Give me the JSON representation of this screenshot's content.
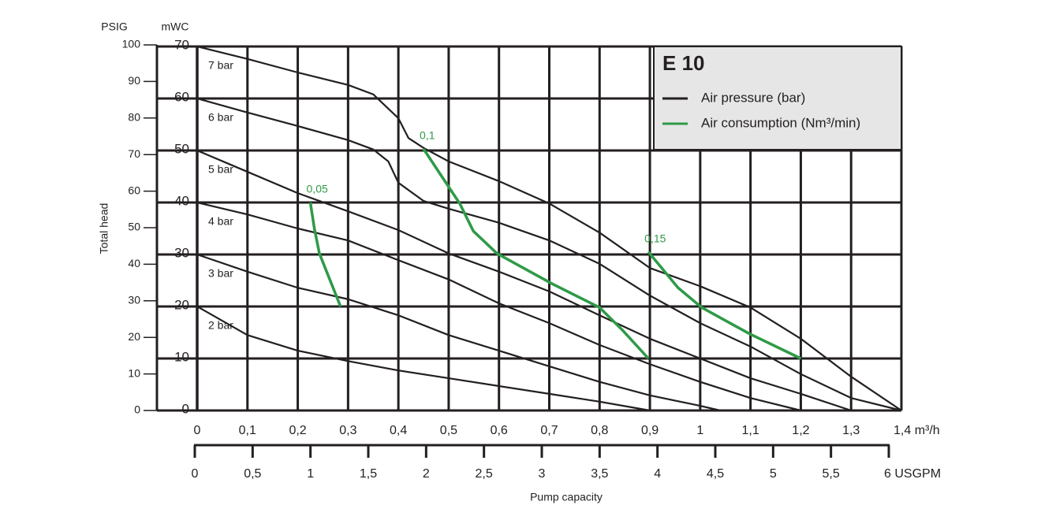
{
  "chart_data": {
    "type": "line",
    "title": "E 10",
    "xlabel": "Pump capacity",
    "ylabel": "Total head",
    "y_unit": "mWC",
    "y2_unit": "PSIG",
    "grid": true,
    "xlim": [
      0,
      1.4
    ],
    "xticks": [
      0,
      {
        "value": 0.1,
        "label": "0,1"
      },
      {
        "value": 0.2,
        "label": "0,2"
      },
      {
        "value": 0.3,
        "label": "0,3"
      },
      {
        "value": 0.4,
        "label": "0,4"
      },
      {
        "value": 0.5,
        "label": "0,5"
      },
      {
        "value": 0.6,
        "label": "0,6"
      },
      {
        "value": 0.7,
        "label": "0,7"
      },
      {
        "value": 0.8,
        "label": "0,8"
      },
      {
        "value": 0.9,
        "label": "0,9"
      },
      1,
      {
        "value": 1.1,
        "label": "1,1"
      },
      {
        "value": 1.2,
        "label": "1,2"
      },
      {
        "value": 1.3,
        "label": "1,3"
      },
      {
        "value": 1.4,
        "label": "1,4 m³/h"
      }
    ],
    "x2lim": [
      0,
      6
    ],
    "x2ticks": [
      0,
      {
        "value": 0.5,
        "label": "0,5"
      },
      1,
      {
        "value": 1.5,
        "label": "1,5"
      },
      2,
      {
        "value": 2.5,
        "label": "2,5"
      },
      3,
      {
        "value": 3.5,
        "label": "3,5"
      },
      4,
      {
        "value": 4.5,
        "label": "4,5"
      },
      5,
      {
        "value": 5.5,
        "label": "5,5"
      },
      {
        "value": 6,
        "label": "6 USGPM"
      }
    ],
    "ylim": [
      0,
      70
    ],
    "yticks": [
      0,
      10,
      20,
      30,
      40,
      50,
      60,
      70
    ],
    "y2lim": [
      0,
      100
    ],
    "y2ticks": [
      0,
      10,
      20,
      30,
      40,
      50,
      60,
      70,
      80,
      90,
      100
    ],
    "legend": [
      {
        "name": "Air pressure (bar)",
        "color": "#231f20"
      },
      {
        "name": "Air consumption (Nm³/min)",
        "color": "#2e9a47"
      }
    ],
    "series": [
      {
        "name": "7 bar",
        "color": "#231f20",
        "x": [
          0,
          0.1,
          0.2,
          0.3,
          0.35,
          0.4,
          0.42,
          0.45,
          0.5,
          0.6,
          0.7,
          0.8,
          0.9,
          1.0,
          1.1,
          1.2,
          1.3,
          1.4
        ],
        "values": [
          70,
          67.6,
          65.0,
          62.6,
          60.8,
          56.2,
          52.4,
          50.5,
          47.9,
          44.1,
          39.8,
          34.2,
          27.4,
          23.9,
          19.8,
          13.8,
          6.5,
          0
        ]
      },
      {
        "name": "6 bar",
        "color": "#231f20",
        "x": [
          0,
          0.1,
          0.2,
          0.3,
          0.35,
          0.38,
          0.4,
          0.45,
          0.5,
          0.6,
          0.7,
          0.8,
          0.9,
          1.0,
          1.1,
          1.2,
          1.3,
          1.4
        ],
        "values": [
          60,
          57.3,
          54.7,
          52.0,
          50.2,
          47.9,
          43.8,
          40.3,
          38.8,
          36.1,
          32.7,
          28.2,
          22.1,
          16.8,
          12.3,
          7.0,
          2.4,
          0
        ]
      },
      {
        "name": "5 bar",
        "color": "#231f20",
        "x": [
          0,
          0.1,
          0.2,
          0.3,
          0.4,
          0.5,
          0.6,
          0.7,
          0.8,
          0.9,
          1.0,
          1.1,
          1.2,
          1.3
        ],
        "values": [
          50,
          45.9,
          41.8,
          38.3,
          34.7,
          30.2,
          26.7,
          22.9,
          18.3,
          13.8,
          10.0,
          6.2,
          3.2,
          0
        ]
      },
      {
        "name": "4 bar",
        "color": "#231f20",
        "x": [
          0,
          0.1,
          0.2,
          0.3,
          0.4,
          0.5,
          0.6,
          0.7,
          0.8,
          0.9,
          1.0,
          1.1,
          1.2
        ],
        "values": [
          40,
          37.7,
          35.0,
          32.7,
          28.9,
          25.2,
          20.6,
          16.8,
          12.6,
          8.9,
          5.5,
          2.4,
          0
        ]
      },
      {
        "name": "3 bar",
        "color": "#231f20",
        "x": [
          0,
          0.1,
          0.2,
          0.3,
          0.4,
          0.5,
          0.6,
          0.7,
          0.8,
          0.9,
          1.0,
          1.04
        ],
        "values": [
          30,
          26.7,
          23.6,
          21.4,
          18.3,
          14.5,
          11.5,
          8.5,
          5.5,
          2.9,
          0.9,
          0
        ]
      },
      {
        "name": "2 bar",
        "color": "#231f20",
        "x": [
          0,
          0.1,
          0.2,
          0.3,
          0.4,
          0.5,
          0.6,
          0.7,
          0.8,
          0.9
        ],
        "values": [
          20,
          14.5,
          11.5,
          9.5,
          7.7,
          6.2,
          4.7,
          3.2,
          1.7,
          0
        ]
      },
      {
        "name": "0,05",
        "color": "#2e9a47",
        "x": [
          0.225,
          0.233,
          0.243,
          0.285
        ],
        "values": [
          40,
          35,
          30.2,
          20
        ]
      },
      {
        "name": "0,1",
        "color": "#2e9a47",
        "x": [
          0.45,
          0.522,
          0.549,
          0.596,
          0.705,
          0.8,
          0.847,
          0.897
        ],
        "values": [
          50.3,
          39.8,
          34.5,
          30.2,
          24.4,
          19.8,
          15.3,
          10
        ]
      },
      {
        "name": "0,15",
        "color": "#2e9a47",
        "x": [
          0.897,
          0.956,
          1.003,
          1.097,
          1.2
        ],
        "values": [
          30.5,
          23.6,
          19.8,
          14.8,
          10
        ]
      }
    ]
  }
}
